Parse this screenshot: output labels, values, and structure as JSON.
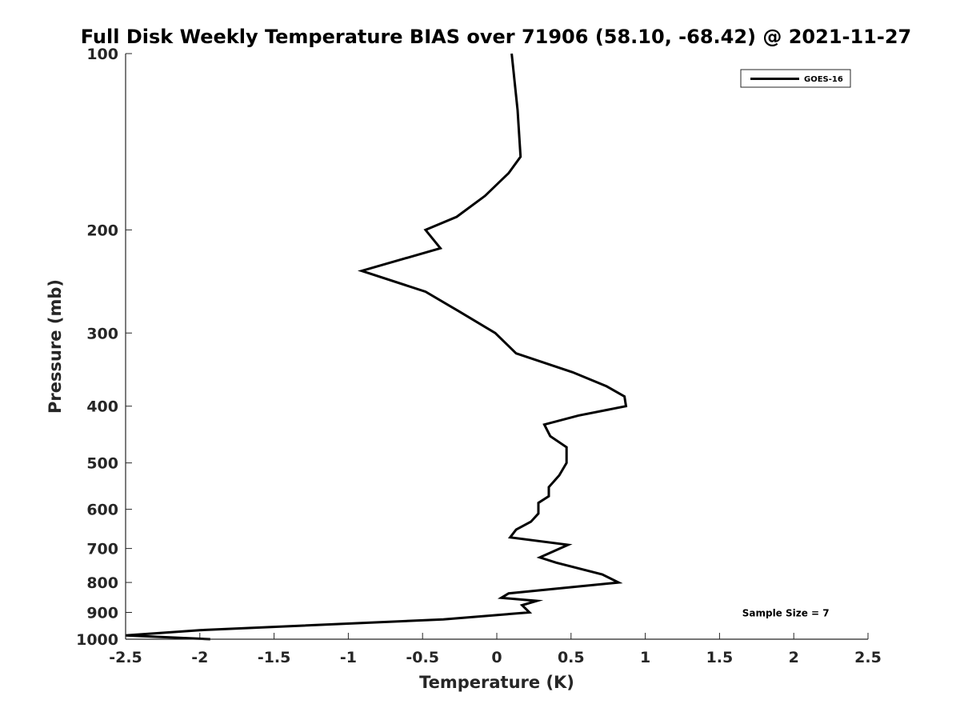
{
  "chart_data": {
    "type": "line",
    "title": "Full Disk Weekly Temperature BIAS over 71906 (58.10, -68.42) @ 2021-11-27",
    "xlabel": "Temperature (K)",
    "ylabel": "Pressure (mb)",
    "xlim": [
      -2.5,
      2.5
    ],
    "ylim": [
      1000,
      100
    ],
    "y_scale": "log",
    "x_ticks": [
      {
        "value": -2.5,
        "label": "-2.5"
      },
      {
        "value": -2,
        "label": "-2"
      },
      {
        "value": -1.5,
        "label": "-1.5"
      },
      {
        "value": -1,
        "label": "-1"
      },
      {
        "value": -0.5,
        "label": "-0.5"
      },
      {
        "value": 0,
        "label": "0"
      },
      {
        "value": 0.5,
        "label": "0.5"
      },
      {
        "value": 1,
        "label": "1"
      },
      {
        "value": 1.5,
        "label": "1.5"
      },
      {
        "value": 2,
        "label": "2"
      },
      {
        "value": 2.5,
        "label": "2.5"
      }
    ],
    "y_ticks": [
      {
        "value": 100,
        "label": "100"
      },
      {
        "value": 200,
        "label": "200"
      },
      {
        "value": 300,
        "label": "300"
      },
      {
        "value": 400,
        "label": "400"
      },
      {
        "value": 500,
        "label": "500"
      },
      {
        "value": 600,
        "label": "600"
      },
      {
        "value": 700,
        "label": "700"
      },
      {
        "value": 800,
        "label": "800"
      },
      {
        "value": 900,
        "label": "900"
      },
      {
        "value": 1000,
        "label": "1000"
      }
    ],
    "grid": false,
    "legend_position": "top-right",
    "series": [
      {
        "name": "GOES-16",
        "color": "#000000",
        "points": [
          {
            "x": 0.1,
            "p": 100
          },
          {
            "x": 0.14,
            "p": 125
          },
          {
            "x": 0.16,
            "p": 150
          },
          {
            "x": 0.08,
            "p": 160
          },
          {
            "x": -0.08,
            "p": 175
          },
          {
            "x": -0.27,
            "p": 190
          },
          {
            "x": -0.48,
            "p": 200
          },
          {
            "x": -0.38,
            "p": 215
          },
          {
            "x": -0.91,
            "p": 235
          },
          {
            "x": -0.48,
            "p": 255
          },
          {
            "x": -0.26,
            "p": 275
          },
          {
            "x": -0.01,
            "p": 300
          },
          {
            "x": 0.13,
            "p": 325
          },
          {
            "x": 0.51,
            "p": 350
          },
          {
            "x": 0.74,
            "p": 370
          },
          {
            "x": 0.86,
            "p": 385
          },
          {
            "x": 0.87,
            "p": 400
          },
          {
            "x": 0.55,
            "p": 415
          },
          {
            "x": 0.32,
            "p": 430
          },
          {
            "x": 0.36,
            "p": 450
          },
          {
            "x": 0.47,
            "p": 470
          },
          {
            "x": 0.47,
            "p": 500
          },
          {
            "x": 0.42,
            "p": 525
          },
          {
            "x": 0.35,
            "p": 550
          },
          {
            "x": 0.35,
            "p": 570
          },
          {
            "x": 0.28,
            "p": 585
          },
          {
            "x": 0.28,
            "p": 610
          },
          {
            "x": 0.23,
            "p": 630
          },
          {
            "x": 0.13,
            "p": 650
          },
          {
            "x": 0.09,
            "p": 670
          },
          {
            "x": 0.48,
            "p": 690
          },
          {
            "x": 0.37,
            "p": 710
          },
          {
            "x": 0.29,
            "p": 725
          },
          {
            "x": 0.4,
            "p": 740
          },
          {
            "x": 0.71,
            "p": 775
          },
          {
            "x": 0.82,
            "p": 800
          },
          {
            "x": 0.08,
            "p": 835
          },
          {
            "x": 0.03,
            "p": 850
          },
          {
            "x": 0.27,
            "p": 860
          },
          {
            "x": 0.17,
            "p": 875
          },
          {
            "x": 0.22,
            "p": 900
          },
          {
            "x": -0.36,
            "p": 925
          },
          {
            "x": -2.0,
            "p": 965
          },
          {
            "x": -2.5,
            "p": 985
          },
          {
            "x": -1.93,
            "p": 1000
          }
        ]
      }
    ],
    "annotations": [
      {
        "text": "Sample Size = 7",
        "x": 2.0,
        "p": 900
      }
    ]
  }
}
